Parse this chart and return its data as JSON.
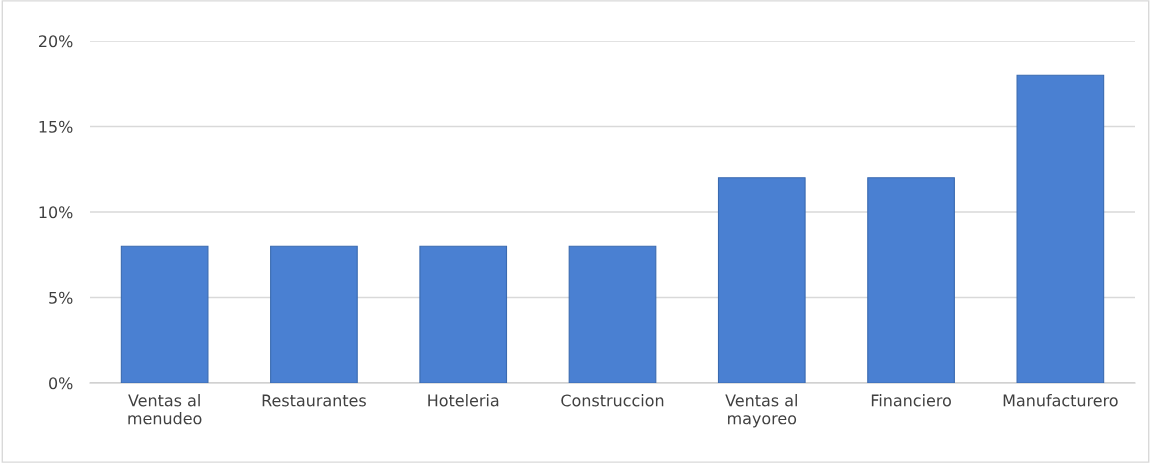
{
  "chart_data": {
    "type": "bar",
    "categories": [
      "Ventas al\nmenudeo",
      "Restaurantes",
      "Hoteleria",
      "Construccion",
      "Ventas al\nmayoreo",
      "Financiero",
      "Manufacturero"
    ],
    "values": [
      8,
      8,
      8,
      8,
      12,
      12,
      18
    ],
    "color": "#4a80d2",
    "ylim": [
      0,
      20
    ],
    "yticks": [
      {
        "value": 0,
        "label": "0%"
      },
      {
        "value": 5,
        "label": "5%"
      },
      {
        "value": 10,
        "label": "10%"
      },
      {
        "value": 15,
        "label": "15%"
      },
      {
        "value": 20,
        "label": "20%"
      }
    ],
    "grid": "y"
  }
}
